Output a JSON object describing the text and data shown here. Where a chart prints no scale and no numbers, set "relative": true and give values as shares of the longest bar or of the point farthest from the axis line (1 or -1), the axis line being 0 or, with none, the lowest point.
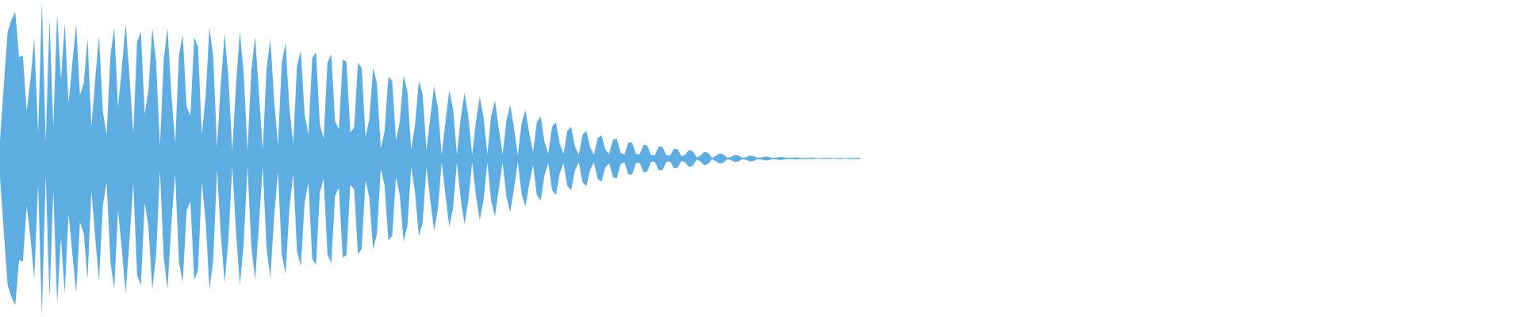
{
  "chart_data": {
    "type": "area",
    "relative": true,
    "categories": [
      null,
      null,
      null,
      null,
      null,
      null,
      null,
      null,
      null,
      null,
      null,
      null,
      null,
      null,
      null,
      null,
      null,
      null,
      null,
      null,
      null,
      null,
      null,
      null,
      null,
      null,
      null,
      null,
      null,
      null,
      null,
      null,
      null,
      null,
      null,
      null,
      null,
      null,
      null,
      null,
      null,
      null,
      null,
      null,
      null,
      null,
      null,
      null,
      null,
      null,
      null,
      null,
      null,
      null,
      null,
      null,
      null,
      null,
      null,
      null,
      null,
      null,
      null,
      null,
      null,
      null,
      null,
      null,
      null,
      null,
      null,
      null,
      null,
      null,
      null,
      null,
      null,
      null,
      null,
      null,
      null,
      null,
      null,
      null,
      null,
      null,
      null,
      null,
      null,
      null,
      null,
      null,
      null,
      null,
      null,
      null,
      null,
      null,
      null,
      null,
      null,
      null,
      null,
      null,
      null,
      null,
      null,
      null,
      null,
      null,
      null,
      null,
      null,
      null,
      null,
      null,
      null,
      null,
      null,
      null,
      null,
      null,
      null,
      null,
      null,
      null,
      null,
      null,
      null,
      null,
      null,
      null,
      null,
      null,
      null,
      null,
      null,
      null,
      null,
      null,
      null,
      null,
      null,
      null,
      null,
      null,
      null,
      null,
      null,
      null,
      null,
      null,
      null,
      null,
      null,
      null,
      null,
      null,
      null,
      null,
      null,
      null,
      null,
      null,
      null,
      null,
      null,
      null,
      null,
      null,
      null,
      null,
      null,
      null,
      null,
      null,
      null,
      null,
      null,
      null,
      null,
      null,
      null,
      null,
      null,
      null,
      null,
      null,
      null,
      null,
      null,
      null,
      null,
      null,
      null,
      null,
      null,
      null,
      null,
      null,
      null,
      null,
      null,
      null,
      null,
      null,
      null,
      null,
      null,
      null,
      null,
      null,
      null,
      null,
      null,
      null,
      null,
      null,
      null,
      null,
      null,
      null,
      null,
      null,
      null,
      null,
      null
    ],
    "series": [
      {
        "color": "#5dade2",
        "values": [
          0.121,
          0.47,
          0.808,
          0.884,
          0.934,
          0.646,
          0.657,
          0.303,
          0.505,
          0.768,
          0.162,
          1,
          0.101,
          0.889,
          0.202,
          0.924,
          0.505,
          0.864,
          0.354,
          0.606,
          0.859,
          0.404,
          0.48,
          0.768,
          0.202,
          0.505,
          0.783,
          0.303,
          0.152,
          0.657,
          0.833,
          0.328,
          0.581,
          0.859,
          0.525,
          0.157,
          0.742,
          0.808,
          0.283,
          0.439,
          0.833,
          0.616,
          0.076,
          0.636,
          0.833,
          0.414,
          0.096,
          0.662,
          0.788,
          0.333,
          0.273,
          0.773,
          0.712,
          0.152,
          0.399,
          0.833,
          0.646,
          0.071,
          0.485,
          0.793,
          0.51,
          0.051,
          0.475,
          0.808,
          0.54,
          0.051,
          0.561,
          0.778,
          0.424,
          0.051,
          0.571,
          0.763,
          0.369,
          0.086,
          0.611,
          0.737,
          0.323,
          0.096,
          0.591,
          0.687,
          0.283,
          0.152,
          0.641,
          0.677,
          0.217,
          0.126,
          0.611,
          0.667,
          0.237,
          0.187,
          0.631,
          0.616,
          0.167,
          0.197,
          0.611,
          0.576,
          0.136,
          0.253,
          0.581,
          0.48,
          0.066,
          0.172,
          0.52,
          0.495,
          0.116,
          0.237,
          0.53,
          0.429,
          0.056,
          0.217,
          0.495,
          0.409,
          0.056,
          0.263,
          0.46,
          0.323,
          0.025,
          0.237,
          0.434,
          0.313,
          0.025,
          0.258,
          0.419,
          0.268,
          0.025,
          0.237,
          0.394,
          0.263,
          0.025,
          0.273,
          0.369,
          0.192,
          0.025,
          0.242,
          0.343,
          0.192,
          0.02,
          0.227,
          0.308,
          0.162,
          0.04,
          0.232,
          0.268,
          0.106,
          0.03,
          0.202,
          0.232,
          0.096,
          0.03,
          0.177,
          0.202,
          0.076,
          0.025,
          0.152,
          0.177,
          0.071,
          0.025,
          0.131,
          0.146,
          0.056,
          0.03,
          0.121,
          0.126,
          0.035,
          0.025,
          0.101,
          0.104,
          0.03,
          0.028,
          0.087,
          0.083,
          0.02,
          0.023,
          0.076,
          0.074,
          0.02,
          0.02,
          0.062,
          0.059,
          0.014,
          0.025,
          0.055,
          0.044,
          0.006,
          0.019,
          0.043,
          0.035,
          0.005,
          0.016,
          0.033,
          0.027,
          0.005,
          0.01,
          0.023,
          0.019,
          0.004,
          0.009,
          0.019,
          0.015,
          0.004,
          0.006,
          0.013,
          0.01,
          0.003,
          0.006,
          0.01,
          0.007,
          0.003,
          0.004,
          0.007,
          0.004,
          0.003,
          0.003,
          0.004,
          0.002,
          0,
          0.003,
          0.003,
          0.003,
          0,
          0.003,
          0.002,
          0,
          0.003,
          0.003,
          0.003,
          0.003
        ]
      },
      {
        "color": "#5dade2",
        "values": [
          -0.121,
          -0.47,
          -0.808,
          -0.884,
          -0.934,
          -0.646,
          -0.657,
          -0.303,
          -0.505,
          -0.768,
          -0.162,
          -1,
          -0.101,
          -0.889,
          -0.202,
          -0.924,
          -0.505,
          -0.864,
          -0.354,
          -0.606,
          -0.859,
          -0.404,
          -0.48,
          -0.768,
          -0.202,
          -0.505,
          -0.783,
          -0.303,
          -0.152,
          -0.657,
          -0.833,
          -0.328,
          -0.581,
          -0.859,
          -0.525,
          -0.157,
          -0.742,
          -0.808,
          -0.283,
          -0.439,
          -0.833,
          -0.616,
          -0.076,
          -0.636,
          -0.833,
          -0.414,
          -0.096,
          -0.662,
          -0.788,
          -0.333,
          -0.273,
          -0.773,
          -0.712,
          -0.152,
          -0.399,
          -0.833,
          -0.646,
          -0.071,
          -0.485,
          -0.793,
          -0.51,
          -0.051,
          -0.475,
          -0.808,
          -0.54,
          -0.051,
          -0.561,
          -0.778,
          -0.424,
          -0.051,
          -0.571,
          -0.763,
          -0.369,
          -0.086,
          -0.611,
          -0.737,
          -0.323,
          -0.096,
          -0.591,
          -0.687,
          -0.283,
          -0.152,
          -0.641,
          -0.677,
          -0.217,
          -0.126,
          -0.611,
          -0.667,
          -0.237,
          -0.187,
          -0.631,
          -0.616,
          -0.167,
          -0.197,
          -0.611,
          -0.576,
          -0.136,
          -0.253,
          -0.581,
          -0.48,
          -0.066,
          -0.172,
          -0.52,
          -0.495,
          -0.116,
          -0.237,
          -0.53,
          -0.429,
          -0.056,
          -0.217,
          -0.495,
          -0.409,
          -0.056,
          -0.263,
          -0.46,
          -0.323,
          -0.025,
          -0.237,
          -0.434,
          -0.313,
          -0.025,
          -0.258,
          -0.419,
          -0.268,
          -0.025,
          -0.237,
          -0.394,
          -0.263,
          -0.025,
          -0.273,
          -0.369,
          -0.192,
          -0.025,
          -0.242,
          -0.343,
          -0.192,
          -0.02,
          -0.227,
          -0.308,
          -0.162,
          -0.04,
          -0.232,
          -0.268,
          -0.106,
          -0.03,
          -0.202,
          -0.232,
          -0.096,
          -0.03,
          -0.177,
          -0.202,
          -0.076,
          -0.025,
          -0.152,
          -0.177,
          -0.071,
          -0.025,
          -0.131,
          -0.146,
          -0.056,
          -0.03,
          -0.121,
          -0.126,
          -0.035,
          -0.025,
          -0.101,
          -0.104,
          -0.03,
          -0.028,
          -0.087,
          -0.083,
          -0.02,
          -0.023,
          -0.076,
          -0.074,
          -0.02,
          -0.02,
          -0.062,
          -0.059,
          -0.014,
          -0.025,
          -0.055,
          -0.044,
          -0.006,
          -0.019,
          -0.043,
          -0.035,
          -0.005,
          -0.016,
          -0.033,
          -0.027,
          -0.005,
          -0.01,
          -0.023,
          -0.019,
          -0.004,
          -0.009,
          -0.019,
          -0.015,
          -0.004,
          -0.006,
          -0.013,
          -0.01,
          -0.003,
          -0.006,
          -0.01,
          -0.007,
          -0.003,
          -0.004,
          -0.007,
          -0.004,
          -0.003,
          -0.003,
          -0.004,
          -0.002,
          0,
          -0.003,
          -0.003,
          -0.003,
          0,
          -0.003,
          -0.002,
          0,
          -0.003,
          -0.003,
          -0.003,
          -0.003
        ]
      }
    ],
    "ref_lines": [
      {
        "axis": "y",
        "value": 0,
        "color": "#5dade2"
      }
    ]
  }
}
